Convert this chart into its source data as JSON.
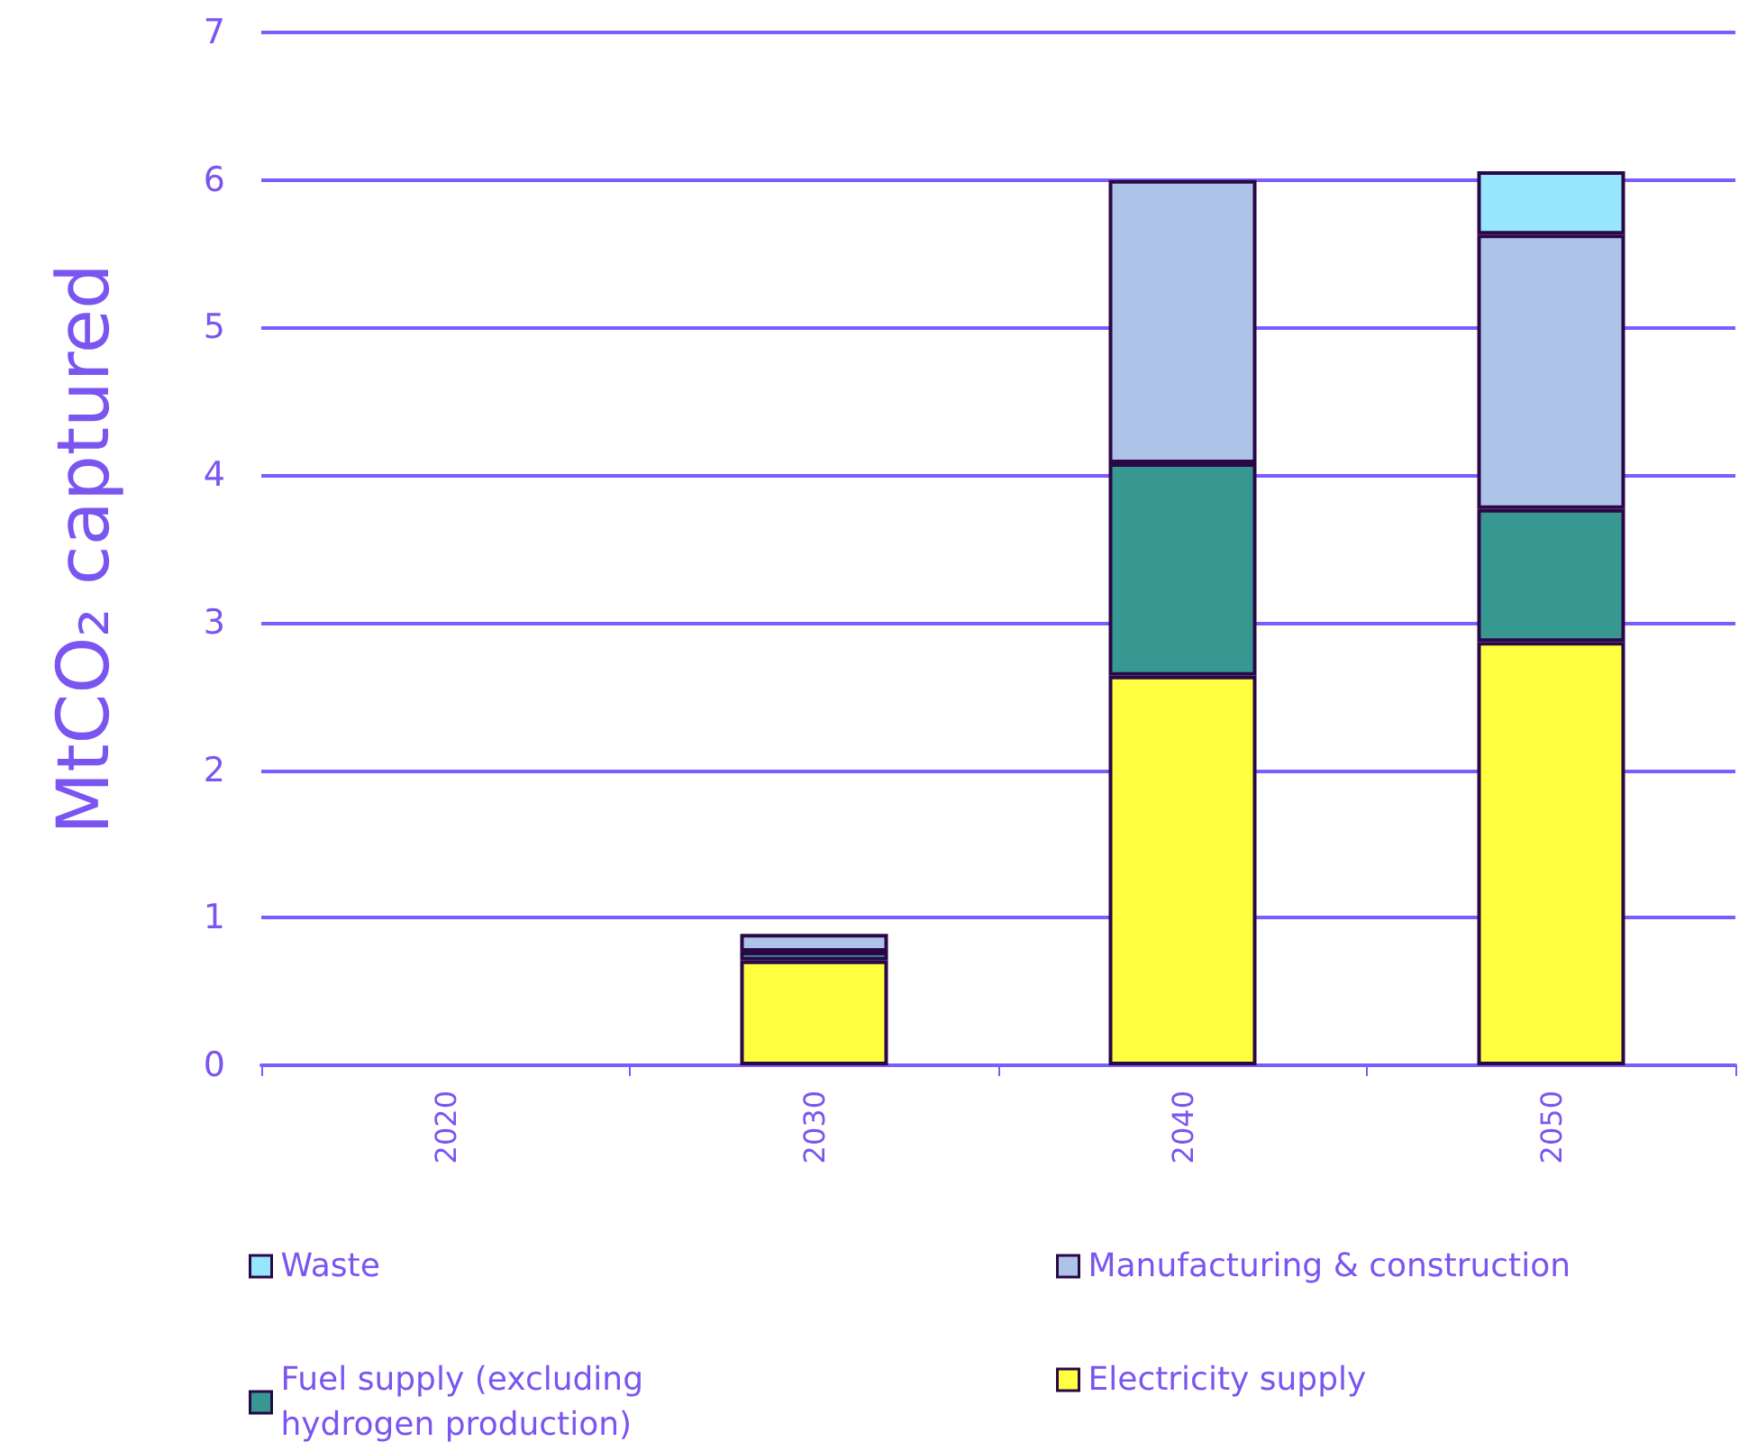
{
  "chart_data": {
    "type": "bar",
    "stacked": true,
    "ylabel": "MtCO₂ captured",
    "categories": [
      "2020",
      "2030",
      "2040",
      "2050"
    ],
    "series": [
      {
        "name": "Electricity supply",
        "color": "#ffff40",
        "values": [
          0,
          0.71,
          2.64,
          2.87
        ]
      },
      {
        "name": "Fuel supply (excluding hydrogen production)",
        "color": "#379892",
        "values": [
          0,
          0.06,
          1.44,
          0.9
        ]
      },
      {
        "name": "Manufacturing & construction",
        "color": "#adc3e8",
        "values": [
          0,
          0.12,
          1.92,
          1.86
        ]
      },
      {
        "name": "Waste",
        "color": "#96e6fc",
        "values": [
          0,
          0,
          0,
          0.43
        ]
      }
    ],
    "ylim": [
      0,
      7
    ],
    "yticks": [
      0,
      1,
      2,
      3,
      4,
      5,
      6,
      7
    ],
    "grid": "y",
    "legend": "bottom"
  }
}
